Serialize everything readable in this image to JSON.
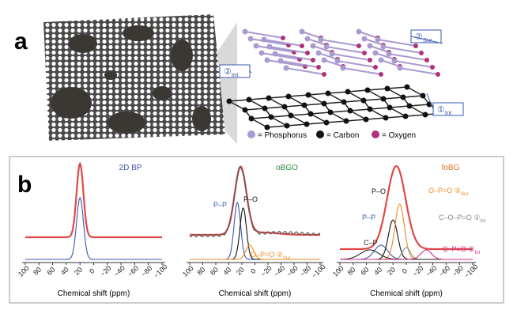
{
  "panel_a": {
    "label": "a",
    "callouts": [
      {
        "text": "②",
        "sub": "Sur"
      },
      {
        "text": "②",
        "sub": "Int"
      },
      {
        "text": "①",
        "sub": "Int"
      }
    ],
    "legend": [
      "= Phosphorus",
      "= Carbon",
      "= Oxygen"
    ]
  },
  "panel_b": {
    "label": "b",
    "xticks": [
      "100",
      "80",
      "60",
      "40",
      "20",
      "0",
      "−20",
      "−40",
      "−60",
      "−80",
      "−100"
    ],
    "xlabel": "Chemical shift (ppm)",
    "plots": [
      {
        "title": "2D BP",
        "annotations": []
      },
      {
        "title": "oBGO",
        "annotations": [
          {
            "text": "P–P"
          },
          {
            "text": "P–O"
          },
          {
            "text": "O–P=O ②",
            "sub": "Sur"
          }
        ]
      },
      {
        "title": "foBG",
        "annotations": [
          {
            "text": "P–O"
          },
          {
            "text": "O–P=O ②",
            "sub": "Sur"
          },
          {
            "text": "P–P"
          },
          {
            "text": "C–O–P=O ②",
            "sub": "Int"
          },
          {
            "text": "C–P"
          },
          {
            "text": "C–P=O ②",
            "sub": "Int"
          }
        ]
      }
    ]
  }
}
